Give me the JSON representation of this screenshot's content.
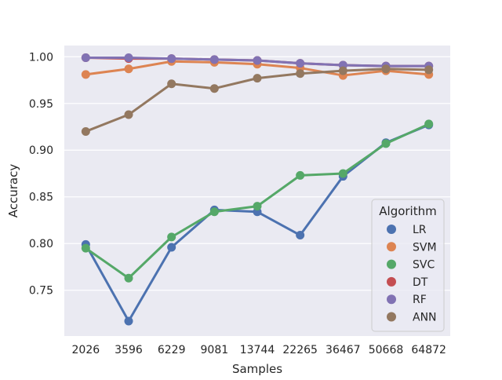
{
  "chart_data": {
    "type": "line",
    "style": "seaborn-pointplot",
    "title": "",
    "xlabel": "Samples",
    "ylabel": "Accuracy",
    "categories": [
      "2026",
      "3596",
      "6229",
      "9081",
      "13744",
      "22265",
      "36467",
      "50668",
      "64872"
    ],
    "ylim": [
      0.701,
      1.012
    ],
    "yticks": [
      0.75,
      0.8,
      0.85,
      0.9,
      0.95,
      1.0
    ],
    "ytick_labels": [
      "0.75",
      "0.80",
      "0.85",
      "0.90",
      "0.95",
      "1.00"
    ],
    "grid": true,
    "legend": {
      "title": "Algorithm",
      "placement": "lower-right"
    },
    "series": [
      {
        "name": "LR",
        "color": "#4c72b0",
        "values": [
          0.799,
          0.717,
          0.796,
          0.836,
          0.834,
          0.809,
          0.872,
          0.908,
          0.927
        ]
      },
      {
        "name": "SVM",
        "color": "#dd8452",
        "values": [
          0.981,
          0.987,
          0.995,
          0.994,
          0.992,
          0.988,
          0.98,
          0.985,
          0.981
        ]
      },
      {
        "name": "SVC",
        "color": "#55a868",
        "values": [
          0.795,
          0.763,
          0.807,
          0.834,
          0.84,
          0.873,
          0.875,
          0.907,
          0.928
        ]
      },
      {
        "name": "DT",
        "color": "#c44e52",
        "values": [
          0.999,
          0.998,
          0.998,
          0.997,
          0.996,
          0.993,
          0.991,
          0.99,
          0.99
        ]
      },
      {
        "name": "RF",
        "color": "#8172b3",
        "values": [
          0.999,
          0.999,
          0.998,
          0.997,
          0.996,
          0.993,
          0.991,
          0.99,
          0.99
        ]
      },
      {
        "name": "ANN",
        "color": "#937860",
        "values": [
          0.92,
          0.938,
          0.971,
          0.966,
          0.977,
          0.982,
          0.985,
          0.987,
          0.986
        ]
      }
    ]
  }
}
